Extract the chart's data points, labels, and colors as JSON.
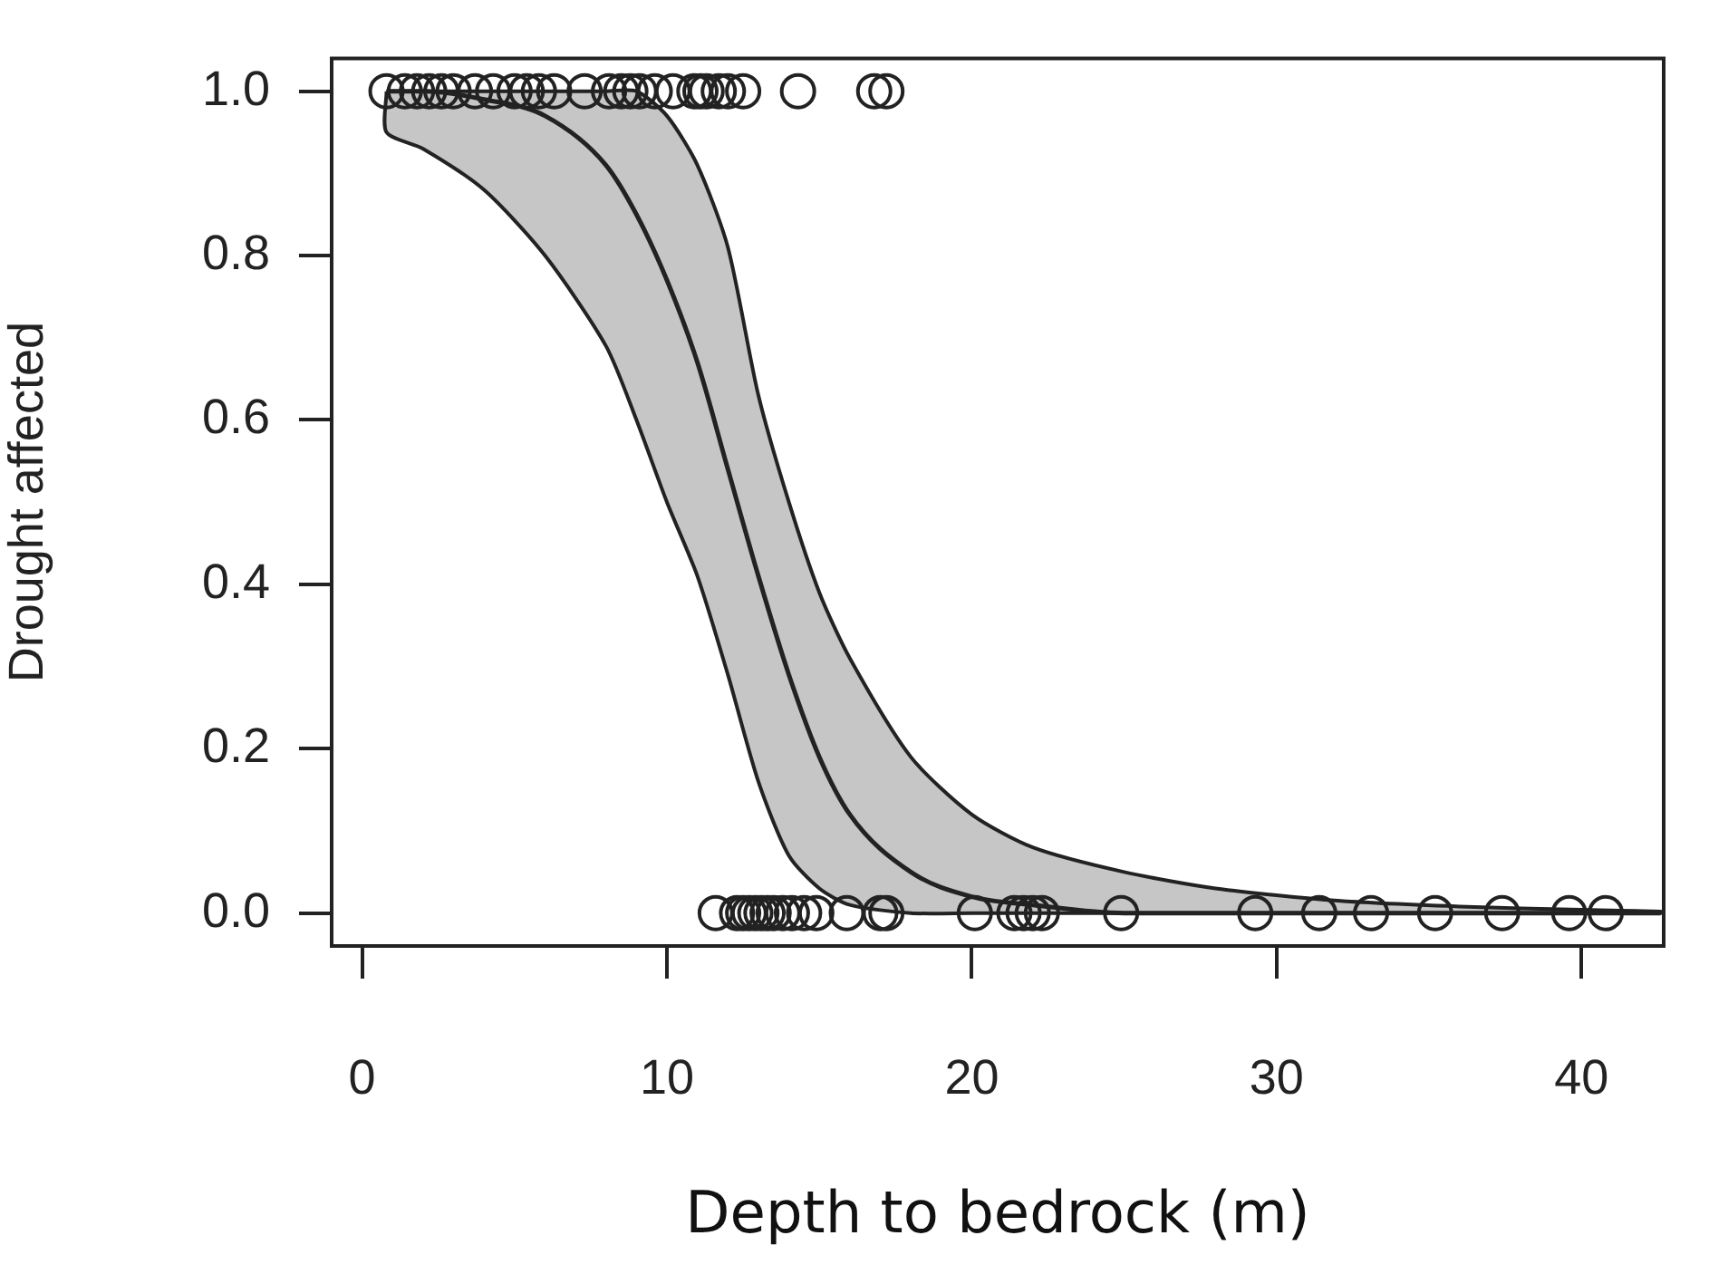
{
  "chart_data": {
    "type": "scatter",
    "xlabel": "Depth to bedrock (m)",
    "ylabel": "Drought affected",
    "xlim": [
      -1,
      42.7
    ],
    "ylim": [
      -0.04,
      1.04
    ],
    "xticks": [
      0,
      10,
      20,
      30,
      40
    ],
    "yticks": [
      {
        "value": 0,
        "label": "0.0"
      },
      0.2,
      0.4,
      0.6,
      0.8,
      {
        "value": 1,
        "label": "1.0"
      }
    ],
    "grid": false,
    "legend": false,
    "series": [
      {
        "type": "scatter",
        "marker": "circle",
        "color": "#222222",
        "x": [
          0.8,
          1.4,
          1.8,
          2.2,
          2.6,
          3.0,
          3.7,
          4.3,
          5.0,
          5.4,
          5.8,
          6.3,
          7.3,
          8.1,
          8.5,
          8.8,
          9.1,
          9.6,
          10.2,
          10.9,
          11.1,
          11.3,
          11.7,
          12.0,
          12.5,
          14.3,
          16.8,
          17.2,
          11.6,
          12.3,
          12.5,
          12.7,
          12.9,
          13.1,
          13.3,
          13.5,
          13.8,
          14.1,
          14.5,
          14.9,
          15.9,
          17.0,
          17.2,
          20.1,
          21.4,
          21.7,
          22.0,
          22.3,
          24.9,
          29.3,
          31.4,
          33.1,
          35.2,
          37.4,
          39.6,
          40.8
        ],
        "values": [
          1,
          1,
          1,
          1,
          1,
          1,
          1,
          1,
          1,
          1,
          1,
          1,
          1,
          1,
          1,
          1,
          1,
          1,
          1,
          1,
          1,
          1,
          1,
          1,
          1,
          1,
          1,
          1,
          0,
          0,
          0,
          0,
          0,
          0,
          0,
          0,
          0,
          0,
          0,
          0,
          0,
          0,
          0,
          0,
          0,
          0,
          0,
          0,
          0,
          0,
          0,
          0,
          0,
          0,
          0,
          0
        ]
      },
      {
        "type": "line",
        "marker": "none",
        "color": "#222222",
        "x": [
          0.8,
          2,
          4,
          6,
          8,
          9,
          10,
          11,
          12,
          13,
          14,
          15,
          16,
          18,
          20,
          22,
          25,
          28,
          32,
          36,
          40,
          42.6
        ],
        "values": [
          1.0,
          1.0,
          0.99,
          0.97,
          0.91,
          0.85,
          0.77,
          0.67,
          0.54,
          0.41,
          0.29,
          0.19,
          0.12,
          0.05,
          0.02,
          0.01,
          0,
          0,
          0,
          0,
          0,
          0
        ],
        "lower": [
          0.95,
          0.93,
          0.88,
          0.8,
          0.69,
          0.6,
          0.5,
          0.41,
          0.29,
          0.16,
          0.07,
          0.03,
          0.01,
          0,
          0,
          0,
          0,
          0,
          0,
          0,
          0,
          0
        ],
        "upper": [
          1.0,
          1.0,
          1.0,
          1.0,
          1.0,
          1.0,
          0.97,
          0.91,
          0.81,
          0.63,
          0.5,
          0.39,
          0.31,
          0.19,
          0.12,
          0.08,
          0.05,
          0.03,
          0.015,
          0.008,
          0.004,
          0.002
        ]
      }
    ]
  }
}
